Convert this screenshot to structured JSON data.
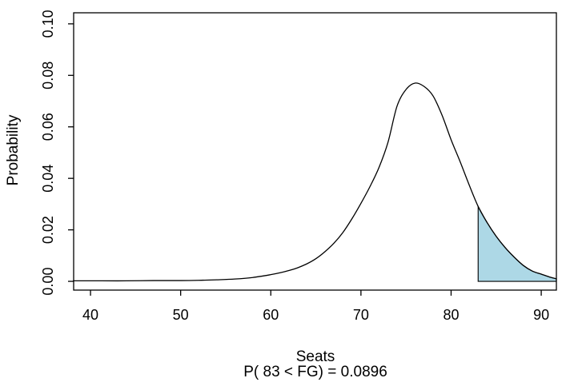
{
  "figure": {
    "background": "#ffffff"
  },
  "chart_data": {
    "type": "area",
    "title": "",
    "xlabel": "Seats",
    "sub_label": "P( 83 < FG) = 0.0896",
    "ylabel": "Probability",
    "x_ticks": [
      "40",
      "50",
      "60",
      "70",
      "80",
      "90"
    ],
    "x_tick_values": [
      40,
      50,
      60,
      70,
      80,
      90
    ],
    "y_ticks": [
      "0.00",
      "0.02",
      "0.04",
      "0.06",
      "0.08",
      "0.10"
    ],
    "y_tick_values": [
      0,
      0.02,
      0.04,
      0.06,
      0.08,
      0.1
    ],
    "xlim": [
      38.13,
      91.68
    ],
    "ylim": [
      -0.0034,
      0.1043
    ],
    "grid": false,
    "legend": "none",
    "curve_color": "#000000",
    "box_color": "#000000",
    "shade": {
      "from_x": 83,
      "fill": "#ADD8E6",
      "border": "#000000"
    },
    "curve": {
      "x": [
        38.1,
        41,
        44,
        47,
        50,
        52,
        54,
        56,
        58,
        60,
        61,
        62,
        63,
        64,
        65,
        66,
        67,
        68,
        69,
        70,
        71,
        72,
        73,
        74,
        75,
        76,
        77,
        78,
        79,
        80,
        81,
        82,
        83,
        84,
        85,
        86,
        87,
        88,
        89,
        90,
        91,
        91.68
      ],
      "y": [
        0.0002,
        0.0002,
        0.0002,
        0.0003,
        0.0003,
        0.0004,
        0.0006,
        0.0009,
        0.0015,
        0.0026,
        0.0033,
        0.0042,
        0.0053,
        0.0068,
        0.0088,
        0.0115,
        0.0148,
        0.019,
        0.0243,
        0.0303,
        0.0368,
        0.0442,
        0.054,
        0.068,
        0.0745,
        0.077,
        0.0757,
        0.072,
        0.0645,
        0.055,
        0.0465,
        0.0375,
        0.0291,
        0.0228,
        0.0175,
        0.0131,
        0.0094,
        0.0062,
        0.004,
        0.0028,
        0.0016,
        0.001
      ]
    }
  }
}
